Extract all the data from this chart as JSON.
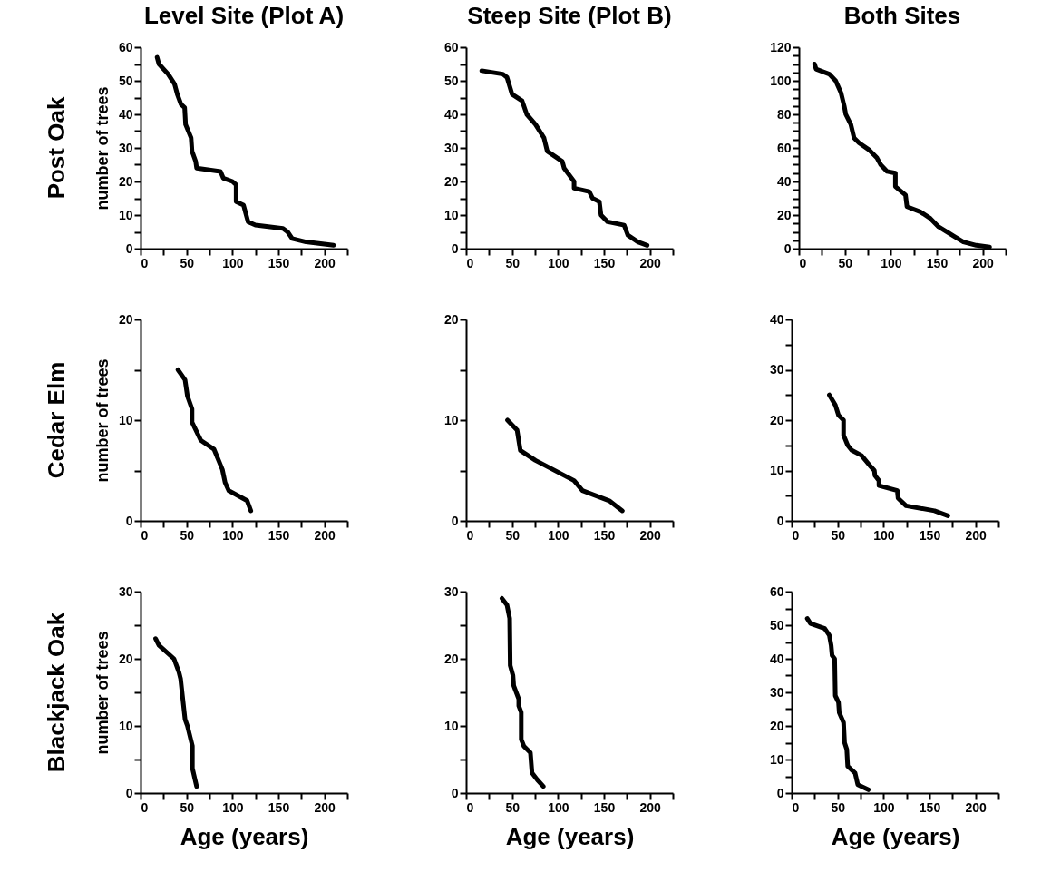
{
  "chart_data": [
    {
      "type": "line",
      "title": "Level Site (Plot A)",
      "ylabel": "number of trees",
      "annotations": [
        "Post Oak"
      ],
      "color": "#000000",
      "line_style": "solid",
      "x": [
        18,
        20,
        30,
        37,
        40,
        44,
        48,
        49,
        55,
        56,
        60,
        61,
        87,
        90,
        100,
        104,
        104,
        112,
        115,
        117,
        125,
        155,
        160,
        165,
        180,
        210
      ],
      "values": [
        57,
        55,
        52,
        49,
        46,
        43,
        42,
        37,
        33,
        29,
        26,
        24,
        23,
        21,
        20,
        19,
        14,
        13,
        10,
        8,
        7,
        6,
        5,
        3,
        2,
        1
      ],
      "xlim": [
        0,
        225
      ],
      "xticks": [
        0,
        {
          "value": 25,
          "label": null
        },
        50,
        {
          "value": 75,
          "label": null
        },
        100,
        {
          "value": 125,
          "label": null
        },
        150,
        {
          "value": 175,
          "label": null
        },
        200,
        {
          "value": 225,
          "label": null
        }
      ],
      "ylim": [
        0,
        60
      ],
      "yticks": [
        0,
        {
          "value": 5,
          "label": null
        },
        10,
        {
          "value": 15,
          "label": null
        },
        20,
        {
          "value": 25,
          "label": null
        },
        30,
        {
          "value": 35,
          "label": null
        },
        40,
        {
          "value": 45,
          "label": null
        },
        50,
        {
          "value": 55,
          "label": null
        },
        60
      ]
    },
    {
      "type": "line",
      "title": "Steep Site (Plot B)",
      "color": "#000000",
      "line_style": "solid",
      "x": [
        17,
        40,
        44.5,
        50,
        61,
        66,
        75.5,
        84.7,
        88.3,
        104.7,
        106.6,
        117.5,
        117.5,
        134,
        137.6,
        145,
        146.8,
        154,
        172,
        176,
        187,
        197
      ],
      "values": [
        53,
        52,
        51,
        46,
        44,
        40,
        37,
        33,
        29,
        26,
        24,
        20,
        18,
        17,
        15,
        14,
        10,
        8,
        7,
        4,
        2,
        1
      ],
      "xlim": [
        0,
        225
      ],
      "xticks": [
        0,
        {
          "value": 25,
          "label": null
        },
        50,
        {
          "value": 75,
          "label": null
        },
        100,
        {
          "value": 125,
          "label": null
        },
        150,
        {
          "value": 175,
          "label": null
        },
        200,
        {
          "value": 225,
          "label": null
        }
      ],
      "ylim": [
        0,
        60
      ],
      "yticks": [
        0,
        {
          "value": 5,
          "label": null
        },
        10,
        {
          "value": 15,
          "label": null
        },
        20,
        {
          "value": 25,
          "label": null
        },
        30,
        {
          "value": 35,
          "label": null
        },
        40,
        {
          "value": 45,
          "label": null
        },
        50,
        {
          "value": 55,
          "label": null
        },
        60
      ]
    },
    {
      "type": "line",
      "title": "Both Sites",
      "color": "#000000",
      "line_style": "solid",
      "x": [
        17,
        18.7,
        33,
        40,
        45.7,
        49.3,
        51,
        56.5,
        60,
        65.5,
        76,
        85,
        89,
        96,
        105,
        105,
        116,
        117.6,
        132,
        143,
        152,
        170,
        179,
        193,
        207.5
      ],
      "values": [
        110,
        107,
        104,
        100,
        93,
        85,
        80,
        74,
        66,
        63,
        59,
        54,
        50,
        46,
        45,
        37,
        32,
        25,
        22,
        18,
        13,
        7,
        4,
        2,
        1
      ],
      "xlim": [
        0,
        225
      ],
      "xticks": [
        0,
        {
          "value": 25,
          "label": null
        },
        50,
        {
          "value": 75,
          "label": null
        },
        100,
        {
          "value": 125,
          "label": null
        },
        150,
        {
          "value": 175,
          "label": null
        },
        200,
        {
          "value": 225,
          "label": null
        }
      ],
      "ylim": [
        0,
        120
      ],
      "yticks": [
        0,
        {
          "value": 5,
          "label": null
        },
        {
          "value": 10,
          "label": null
        },
        {
          "value": 15,
          "label": null
        },
        20,
        {
          "value": 25,
          "label": null
        },
        {
          "value": 30,
          "label": null
        },
        {
          "value": 35,
          "label": null
        },
        40,
        {
          "value": 45,
          "label": null
        },
        {
          "value": 50,
          "label": null
        },
        {
          "value": 55,
          "label": null
        },
        60,
        {
          "value": 65,
          "label": null
        },
        {
          "value": 70,
          "label": null
        },
        {
          "value": 75,
          "label": null
        },
        80,
        {
          "value": 85,
          "label": null
        },
        {
          "value": 90,
          "label": null
        },
        {
          "value": 95,
          "label": null
        },
        100,
        {
          "value": 105,
          "label": null
        },
        {
          "value": 110,
          "label": null
        },
        {
          "value": 115,
          "label": null
        },
        120
      ]
    },
    {
      "type": "line",
      "ylabel": "number of trees",
      "annotations": [
        "Cedar Elm"
      ],
      "color": "#000000",
      "line_style": "solid",
      "x": [
        40.7,
        48.4,
        51,
        56,
        56,
        65.5,
        80,
        89,
        92,
        96,
        116,
        120
      ],
      "values": [
        15,
        14,
        12.4,
        11.1,
        9.8,
        8,
        7.1,
        5.1,
        3.8,
        3,
        2,
        1
      ],
      "xlim": [
        0,
        225
      ],
      "xticks": [
        0,
        {
          "value": 25,
          "label": null
        },
        50,
        {
          "value": 75,
          "label": null
        },
        100,
        {
          "value": 125,
          "label": null
        },
        150,
        {
          "value": 175,
          "label": null
        },
        200,
        {
          "value": 225,
          "label": null
        }
      ],
      "ylim": [
        0,
        20
      ],
      "yticks": [
        0,
        {
          "value": 5,
          "label": null
        },
        10,
        {
          "value": 15,
          "label": null
        },
        20
      ]
    },
    {
      "type": "line",
      "color": "#000000",
      "line_style": "solid",
      "x": [
        45,
        55.5,
        59,
        75.5,
        117.5,
        126.6,
        155.8,
        170
      ],
      "values": [
        10,
        9,
        7,
        6,
        4,
        3,
        2,
        1
      ],
      "xlim": [
        0,
        225
      ],
      "xticks": [
        0,
        {
          "value": 25,
          "label": null
        },
        50,
        {
          "value": 75,
          "label": null
        },
        100,
        {
          "value": 125,
          "label": null
        },
        150,
        {
          "value": 175,
          "label": null
        },
        200,
        {
          "value": 225,
          "label": null
        }
      ],
      "ylim": [
        0,
        20
      ],
      "yticks": [
        0,
        {
          "value": 5,
          "label": null
        },
        10,
        {
          "value": 15,
          "label": null
        },
        20
      ]
    },
    {
      "type": "line",
      "color": "#000000",
      "line_style": "solid",
      "x": [
        41,
        47.5,
        51,
        56.5,
        56.5,
        61,
        65.5,
        76,
        85,
        90,
        90.6,
        95,
        95,
        115,
        115.8,
        124.5,
        155.4,
        170
      ],
      "values": [
        25,
        23,
        21,
        20,
        17,
        15,
        14,
        13,
        11,
        10,
        9,
        8,
        7,
        6,
        4.5,
        3,
        2,
        1
      ],
      "xlim": [
        0,
        225
      ],
      "xticks": [
        0,
        {
          "value": 25,
          "label": null
        },
        50,
        {
          "value": 75,
          "label": null
        },
        100,
        {
          "value": 125,
          "label": null
        },
        150,
        {
          "value": 175,
          "label": null
        },
        200,
        {
          "value": 225,
          "label": null
        }
      ],
      "ylim": [
        0,
        40
      ],
      "yticks": [
        0,
        {
          "value": 5,
          "label": null
        },
        10,
        {
          "value": 15,
          "label": null
        },
        20,
        {
          "value": 25,
          "label": null
        },
        30,
        {
          "value": 35,
          "label": null
        },
        40
      ]
    },
    {
      "type": "line",
      "ylabel": "number of trees",
      "xlabel": "Age (years)",
      "annotations": [
        "Blackjack Oak"
      ],
      "color": "#000000",
      "line_style": "solid",
      "x": [
        16.4,
        20,
        36.4,
        41.8,
        43.6,
        45.5,
        48.4,
        51,
        56.4,
        56.4,
        61
      ],
      "values": [
        23,
        22,
        20,
        18,
        17,
        14.6,
        11,
        10,
        7,
        3.7,
        1
      ],
      "xlim": [
        0,
        225
      ],
      "xticks": [
        0,
        {
          "value": 25,
          "label": null
        },
        50,
        {
          "value": 75,
          "label": null
        },
        100,
        {
          "value": 125,
          "label": null
        },
        150,
        {
          "value": 175,
          "label": null
        },
        200,
        {
          "value": 225,
          "label": null
        }
      ],
      "ylim": [
        0,
        30
      ],
      "yticks": [
        0,
        {
          "value": 5,
          "label": null
        },
        10,
        {
          "value": 15,
          "label": null
        },
        20,
        {
          "value": 25,
          "label": null
        },
        30
      ]
    },
    {
      "type": "line",
      "xlabel": "Age (years)",
      "color": "#000000",
      "line_style": "solid",
      "x": [
        39,
        44.5,
        47.4,
        48,
        51,
        51.8,
        57.3,
        57.3,
        60,
        60,
        62.8,
        70,
        71.7,
        77.4,
        84
      ],
      "values": [
        29,
        28,
        26,
        19,
        17.5,
        16,
        14,
        13,
        12,
        8,
        7,
        6,
        3,
        2,
        1
      ],
      "xlim": [
        0,
        225
      ],
      "xticks": [
        0,
        {
          "value": 25,
          "label": null
        },
        50,
        {
          "value": 75,
          "label": null
        },
        100,
        {
          "value": 125,
          "label": null
        },
        150,
        {
          "value": 175,
          "label": null
        },
        200,
        {
          "value": 225,
          "label": null
        }
      ],
      "ylim": [
        0,
        30
      ],
      "yticks": [
        0,
        {
          "value": 5,
          "label": null
        },
        10,
        {
          "value": 15,
          "label": null
        },
        20,
        {
          "value": 25,
          "label": null
        },
        30
      ]
    },
    {
      "type": "line",
      "xlabel": "Age (years)",
      "color": "#000000",
      "line_style": "solid",
      "x": [
        17,
        20.5,
        36,
        41,
        43,
        44,
        46.8,
        47.5,
        51,
        51.8,
        56.5,
        57.6,
        60,
        61,
        69,
        72,
        83.5
      ],
      "values": [
        52,
        50.5,
        49,
        47,
        44,
        41,
        40,
        29,
        27,
        24,
        21,
        15,
        13,
        8,
        6,
        2.5,
        1
      ],
      "xlim": [
        0,
        225
      ],
      "xticks": [
        0,
        {
          "value": 25,
          "label": null
        },
        50,
        {
          "value": 75,
          "label": null
        },
        100,
        {
          "value": 125,
          "label": null
        },
        150,
        {
          "value": 175,
          "label": null
        },
        200,
        {
          "value": 225,
          "label": null
        }
      ],
      "ylim": [
        0,
        60
      ],
      "yticks": [
        0,
        {
          "value": 5,
          "label": null
        },
        10,
        {
          "value": 15,
          "label": null
        },
        20,
        {
          "value": 25,
          "label": null
        },
        30,
        {
          "value": 35,
          "label": null
        },
        40,
        {
          "value": 45,
          "label": null
        },
        50,
        {
          "value": 55,
          "label": null
        },
        60
      ]
    }
  ]
}
